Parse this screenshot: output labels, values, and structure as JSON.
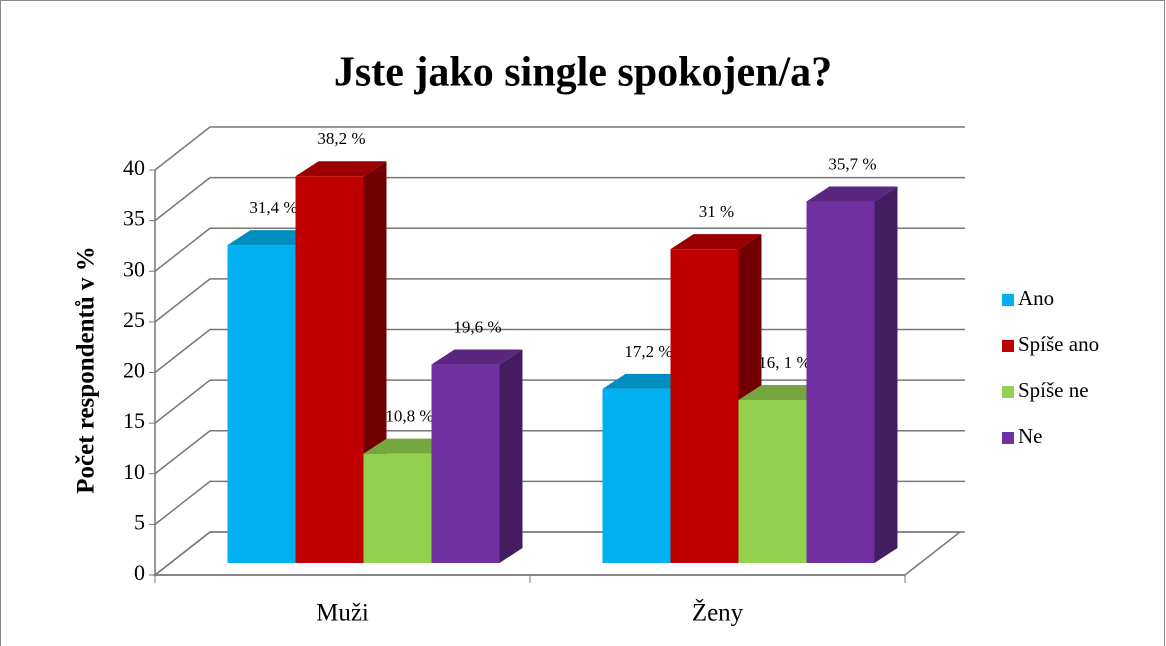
{
  "chart_data": {
    "type": "bar3d",
    "title": "Jste jako single spokojen/a?",
    "y_label": "Počet respondentů v %",
    "categories": [
      "Muži",
      "Ženy"
    ],
    "series": [
      {
        "name": "Ano",
        "color": "#00b0f0",
        "values": [
          31.4,
          17.2
        ],
        "value_labels": [
          "31,4 %",
          "17,2 %"
        ]
      },
      {
        "name": "Spíše ano",
        "color": "#c00000",
        "values": [
          38.2,
          31
        ],
        "value_labels": [
          "38,2 %",
          "31 %"
        ]
      },
      {
        "name": "Spíše ne",
        "color": "#92d050",
        "values": [
          10.8,
          16.1
        ],
        "value_labels": [
          "10,8 %",
          "16, 1 %"
        ]
      },
      {
        "name": "Ne",
        "color": "#7030a0",
        "values": [
          19.6,
          35.7
        ],
        "value_labels": [
          "19,6 %",
          "35,7 %"
        ]
      }
    ],
    "ylim": [
      0,
      40
    ],
    "yticks": [
      0,
      5,
      10,
      15,
      20,
      25,
      30,
      35,
      40
    ],
    "grid": true,
    "legend": "right"
  }
}
